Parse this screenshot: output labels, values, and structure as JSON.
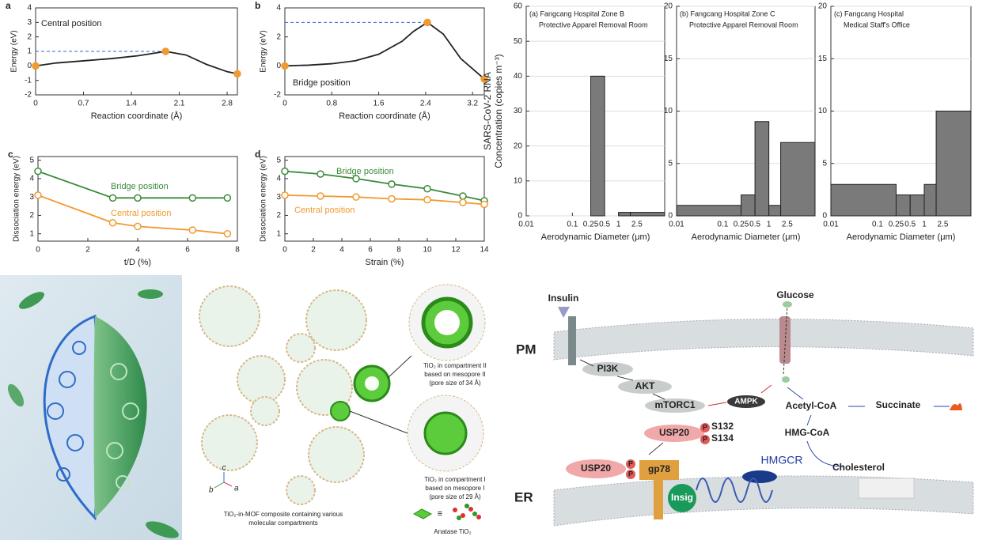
{
  "chart_data": [
    {
      "type": "line",
      "panel": "a",
      "annotation": "Central position",
      "xlabel": "Reaction coordinate (Å)",
      "ylabel": "Energy (eV)",
      "xlim": [
        0,
        2.95
      ],
      "xticks": [
        0.0,
        0.7,
        1.4,
        2.1,
        2.8
      ],
      "ylim": [
        -2,
        4
      ],
      "yticks": [
        -2,
        -1,
        0,
        1,
        2,
        3,
        4
      ],
      "reference_line": {
        "y": 1,
        "x": [
          0,
          1.9
        ],
        "color": "#2a6ad8"
      },
      "x": [
        0,
        0.3,
        0.7,
        1.1,
        1.5,
        1.9,
        2.2,
        2.5,
        2.8,
        2.95
      ],
      "series": [
        {
          "color": "#222222",
          "marker": "none",
          "values": [
            0,
            0.2,
            0.35,
            0.5,
            0.7,
            1.0,
            0.75,
            0.1,
            -0.4,
            -0.55
          ]
        },
        {
          "color": "#f09a30",
          "marker": "filled",
          "line": false,
          "values": [
            0,
            null,
            null,
            null,
            null,
            1.0,
            null,
            null,
            null,
            -0.55
          ]
        }
      ]
    },
    {
      "type": "line",
      "panel": "b",
      "annotation": "Bridge position",
      "xlabel": "Reaction coordinate (Å)",
      "ylabel": "Energy (eV)",
      "xlim": [
        0,
        3.4
      ],
      "xticks": [
        0.0,
        0.8,
        1.6,
        2.4,
        3.2
      ],
      "ylim": [
        -2,
        4
      ],
      "yticks": [
        -2,
        0,
        2,
        4
      ],
      "reference_line": {
        "y": 3,
        "x": [
          0,
          2.43
        ],
        "color": "#2a6ad8"
      },
      "x": [
        0,
        0.4,
        0.8,
        1.2,
        1.6,
        2.0,
        2.2,
        2.43,
        2.7,
        3.0,
        3.4
      ],
      "series": [
        {
          "color": "#222222",
          "marker": "none",
          "values": [
            0,
            0.05,
            0.15,
            0.35,
            0.8,
            1.7,
            2.4,
            3.0,
            2.2,
            0.5,
            -0.9
          ]
        },
        {
          "color": "#f09a30",
          "marker": "filled",
          "line": false,
          "values": [
            0,
            null,
            null,
            null,
            null,
            null,
            null,
            3.0,
            null,
            null,
            -0.9
          ]
        }
      ]
    },
    {
      "type": "line",
      "panel": "c",
      "xlabel": "t/D (%)",
      "ylabel": "Dissociation energy (eV)",
      "xlim": [
        0,
        8
      ],
      "xticks": [
        0,
        2,
        4,
        6,
        8
      ],
      "ylim": [
        0.6,
        5.2
      ],
      "yticks": [
        1,
        2,
        3,
        4,
        5
      ],
      "x": [
        0,
        3,
        4,
        6.2,
        7.6
      ],
      "series": [
        {
          "name": "Bridge position",
          "color": "#3a8a3a",
          "marker": "open",
          "values": [
            4.4,
            2.95,
            2.95,
            2.95,
            2.95
          ]
        },
        {
          "name": "Central position",
          "color": "#f09a30",
          "marker": "open",
          "values": [
            3.1,
            1.6,
            1.4,
            1.2,
            1.0
          ]
        }
      ]
    },
    {
      "type": "line",
      "panel": "d",
      "xlabel": "Strain (%)",
      "ylabel": "Dissociation energy (eV)",
      "xlim": [
        0,
        14
      ],
      "xticks": [
        0,
        2,
        4,
        6,
        8,
        10,
        12,
        14
      ],
      "ylim": [
        0.6,
        5.2
      ],
      "yticks": [
        1,
        2,
        3,
        4,
        5
      ],
      "x": [
        0,
        2.5,
        5,
        7.5,
        10,
        12.5,
        14
      ],
      "series": [
        {
          "name": "Bridge position",
          "color": "#3a8a3a",
          "marker": "open",
          "values": [
            4.4,
            4.25,
            4.0,
            3.7,
            3.45,
            3.05,
            2.8
          ]
        },
        {
          "name": "Central position",
          "color": "#f09a30",
          "marker": "open",
          "values": [
            3.1,
            3.05,
            3.0,
            2.9,
            2.85,
            2.7,
            2.6
          ]
        }
      ]
    },
    {
      "type": "histogram",
      "title": [
        "(a) Fangcang Hospital Zone B",
        "Protective Apparel Removal Room"
      ],
      "ylabel": [
        "SARS-CoV-2 RNA",
        "Concentration (copies m⁻³)"
      ],
      "xlabel": "Aerodynamic Diameter (μm)",
      "xscale": "log",
      "xlim": [
        0.01,
        10
      ],
      "xticks": [
        0.01,
        0.1,
        0.25,
        0.5,
        1,
        2.5
      ],
      "ylim": [
        0,
        60
      ],
      "yticks": [
        0,
        10,
        20,
        30,
        40,
        50,
        60
      ],
      "grid": true,
      "bins": [
        0.01,
        0.25,
        0.5,
        1,
        1.8,
        10
      ],
      "values": [
        0,
        40,
        0,
        1,
        1
      ],
      "color": "#7a7a7a"
    },
    {
      "type": "histogram",
      "title": [
        "(b) Fangcang Hospital Zone C",
        "Protective Apparel Removal Room"
      ],
      "xlabel": "Aerodynamic Diameter (μm)",
      "xscale": "log",
      "xlim": [
        0.01,
        10
      ],
      "xticks": [
        0.01,
        0.1,
        0.25,
        0.5,
        1,
        2.5
      ],
      "ylim": [
        0,
        20
      ],
      "yticks": [
        0,
        5,
        10,
        15,
        20
      ],
      "grid": true,
      "bins": [
        0.01,
        0.25,
        0.5,
        1,
        1.8,
        10
      ],
      "values": [
        1,
        2,
        9,
        1,
        7
      ],
      "color": "#7a7a7a"
    },
    {
      "type": "histogram",
      "title": [
        "(c) Fangcang Hospital",
        "Medical Staff's Office"
      ],
      "xlabel": "Aerodynamic Diameter (μm)",
      "xscale": "log",
      "xlim": [
        0.01,
        10
      ],
      "xticks": [
        0.01,
        0.1,
        0.25,
        0.5,
        1,
        2.5
      ],
      "ylim": [
        0,
        20
      ],
      "yticks": [
        0,
        5,
        10,
        15,
        20
      ],
      "grid": true,
      "bins": [
        0.01,
        0.25,
        0.5,
        1,
        1.8,
        10
      ],
      "values": [
        3,
        2,
        2,
        3,
        10
      ],
      "color": "#7a7a7a"
    }
  ],
  "mof": {
    "compartment_2": [
      "TiO₂ in compartment II",
      "based on mesopore II",
      "(pore size of 34 Å)"
    ],
    "compartment_1": [
      "TiO₂ in compartment I",
      "based on mesopore I",
      "(pore size of 29 Å)"
    ],
    "caption": [
      "TiO₂-in-MOF composite containing various",
      "molecular compartments"
    ],
    "equiv": "≡",
    "anatase": "Anatase TiO₂",
    "axes": [
      "a",
      "b",
      "c"
    ]
  },
  "pathway": {
    "labels": [
      "Insulin",
      "Glucose",
      "PM",
      "PI3K",
      "AKT",
      "mTORC1",
      "AMPK",
      "Acetyl-CoA",
      "Succinate",
      "USP20",
      "P",
      "S132",
      "P",
      "S134",
      "HMG-CoA",
      "HMGCR",
      "Cholesterol",
      "USP20",
      "P",
      "P",
      "gp78",
      "Insig",
      "ER"
    ]
  }
}
